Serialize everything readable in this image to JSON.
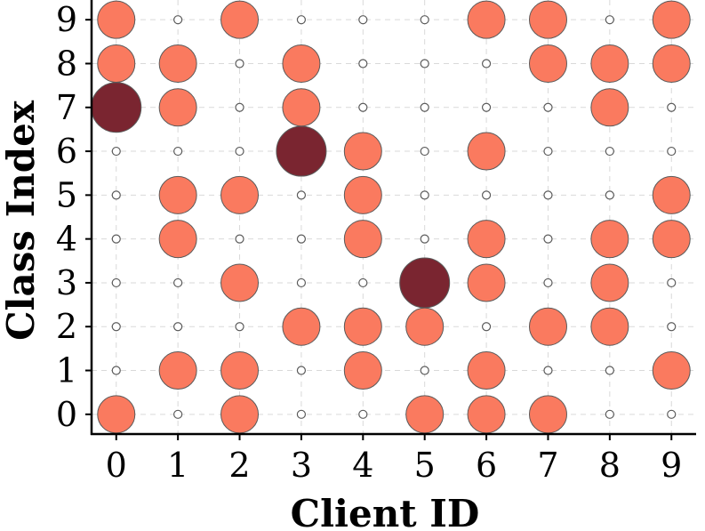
{
  "chart_data": {
    "type": "scatter",
    "title": "",
    "xlabel": "Client ID",
    "ylabel": "Class Index",
    "x_ticks": [
      "0",
      "1",
      "2",
      "3",
      "4",
      "5",
      "6",
      "7",
      "8",
      "9"
    ],
    "y_ticks": [
      "0",
      "1",
      "2",
      "3",
      "4",
      "5",
      "6",
      "7",
      "8",
      "9"
    ],
    "xlim": [
      -0.4,
      9.4
    ],
    "ylim": [
      -0.45,
      9.45
    ],
    "grid": true,
    "colors": {
      "small": "#ffffff",
      "medium": "#fa7a5f",
      "large": "#7a2530",
      "edge": "#5a5a5a"
    },
    "size_levels": [
      "small",
      "medium",
      "large"
    ],
    "matrix": [
      [
        "medium",
        "small",
        "medium",
        "small",
        "small",
        "medium",
        "medium",
        "medium",
        "small",
        "small"
      ],
      [
        "small",
        "medium",
        "medium",
        "small",
        "medium",
        "small",
        "medium",
        "small",
        "small",
        "medium"
      ],
      [
        "small",
        "small",
        "small",
        "medium",
        "medium",
        "medium",
        "small",
        "medium",
        "medium",
        "small"
      ],
      [
        "small",
        "small",
        "medium",
        "small",
        "small",
        "large",
        "medium",
        "small",
        "medium",
        "small"
      ],
      [
        "small",
        "medium",
        "small",
        "small",
        "medium",
        "small",
        "medium",
        "small",
        "medium",
        "medium"
      ],
      [
        "small",
        "medium",
        "medium",
        "small",
        "medium",
        "small",
        "small",
        "small",
        "small",
        "medium"
      ],
      [
        "small",
        "small",
        "small",
        "large",
        "medium",
        "small",
        "medium",
        "small",
        "small",
        "small"
      ],
      [
        "large",
        "medium",
        "small",
        "medium",
        "small",
        "small",
        "small",
        "small",
        "medium",
        "small"
      ],
      [
        "medium",
        "medium",
        "small",
        "medium",
        "small",
        "small",
        "small",
        "medium",
        "medium",
        "medium"
      ],
      [
        "medium",
        "small",
        "medium",
        "small",
        "small",
        "small",
        "medium",
        "medium",
        "small",
        "medium"
      ]
    ]
  }
}
